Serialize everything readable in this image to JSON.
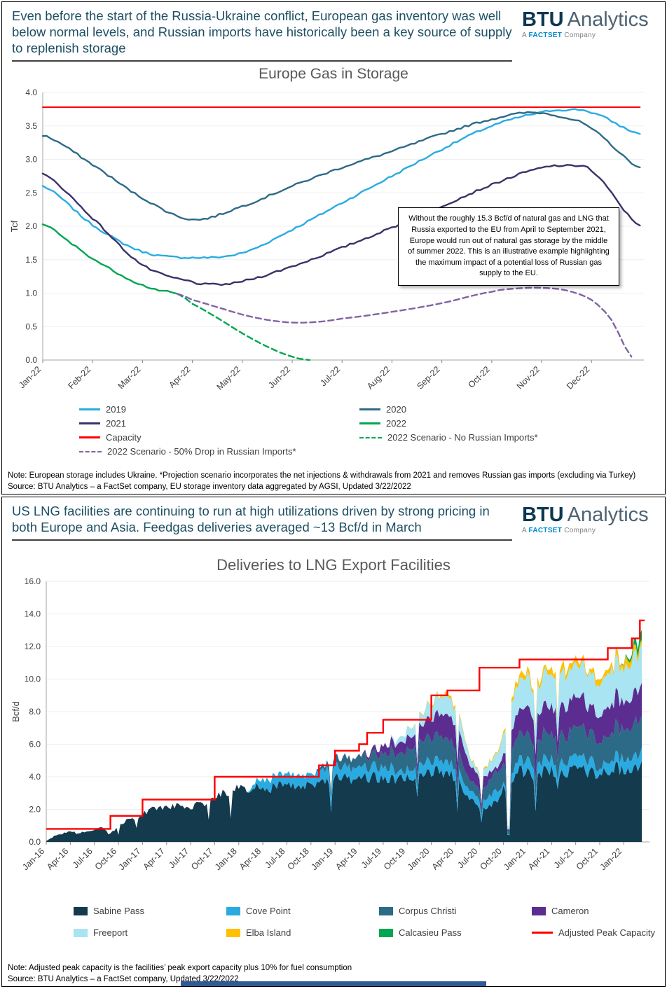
{
  "brand": {
    "btu": "BTU",
    "analytics": "Analytics",
    "a": "A",
    "factset": "FACTSET",
    "company": "Company"
  },
  "panels": [
    {
      "headline": "Even before the start of the Russia-Ukraine conflict, European gas inventory was well below normal levels, and Russian imports have historically been a key source of supply to replenish storage",
      "note": "Note:  European storage includes Ukraine. *Projection scenario incorporates the net injections & withdrawals from 2021 and removes Russian gas imports (excluding via Turkey)",
      "source": "Source: BTU Analytics – a FactSet company, EU storage inventory data aggregated by AGSI, Updated 3/22/2022"
    },
    {
      "headline": "US LNG facilities are continuing to run at high utilizations driven by strong pricing in both Europe and Asia. Feedgas deliveries averaged ~13 Bcf/d in March",
      "note": "Note:  Adjusted peak capacity is the facilities’ peak export capacity plus 10% for fuel consumption",
      "source": "Source: BTU Analytics – a FactSet company, Updated 3/22/2022"
    }
  ],
  "chart_data": [
    {
      "type": "line",
      "title": "Europe Gas in Storage",
      "ylabel": "Tcf",
      "ylim": [
        0,
        4.0
      ],
      "yticks": [
        0.0,
        0.5,
        1.0,
        1.5,
        2.0,
        2.5,
        3.0,
        3.5,
        4.0
      ],
      "xlim": [
        0,
        12.05
      ],
      "x_tick_labels": [
        "Jan-22",
        "Feb-22",
        "Mar-22",
        "Apr-22",
        "May-22",
        "Jun-22",
        "Jul-22",
        "Aug-22",
        "Sep-22",
        "Oct-22",
        "Nov-22",
        "Dec-22"
      ],
      "grid": true,
      "legend_position": "bottom",
      "annotation": "Without the roughly 15.3 Bcf/d of natural gas and LNG that Russia exported to the EU from April to September 2021, Europe would run out of natural gas storage by the middle of summer 2022. This is an illustrative example highlighting the maximum impact of a potential loss of Russian gas supply to the EU.",
      "series": [
        {
          "name": "2019",
          "color": "#29ABE2",
          "dash": false,
          "x": [
            0,
            1,
            2,
            3,
            4,
            5,
            6,
            7,
            8,
            9,
            10,
            10.5,
            11,
            11.97
          ],
          "y": [
            2.6,
            2.02,
            1.62,
            1.53,
            1.6,
            1.95,
            2.35,
            2.75,
            3.15,
            3.5,
            3.7,
            3.74,
            3.7,
            3.38
          ]
        },
        {
          "name": "2020",
          "color": "#2D6A87",
          "dash": false,
          "x": [
            0,
            1,
            2,
            3,
            4,
            5,
            6,
            7,
            8,
            9,
            9.8,
            10.5,
            11,
            11.97
          ],
          "y": [
            3.36,
            2.92,
            2.42,
            2.1,
            2.3,
            2.6,
            2.88,
            3.12,
            3.38,
            3.6,
            3.7,
            3.62,
            3.45,
            2.88
          ]
        },
        {
          "name": "2021",
          "color": "#3A3268",
          "dash": false,
          "x": [
            0,
            1,
            2,
            3,
            3.5,
            4,
            5,
            6,
            7,
            8,
            9,
            10,
            10.6,
            11,
            11.97
          ],
          "y": [
            2.78,
            2.12,
            1.42,
            1.17,
            1.13,
            1.18,
            1.4,
            1.68,
            1.98,
            2.3,
            2.62,
            2.87,
            2.9,
            2.82,
            2.01
          ]
        },
        {
          "name": "2022",
          "color": "#00A651",
          "dash": false,
          "x": [
            0,
            0.5,
            1,
            1.5,
            2,
            2.5,
            2.7
          ],
          "y": [
            2.04,
            1.78,
            1.52,
            1.3,
            1.12,
            1.02,
            0.99
          ]
        },
        {
          "name": "Capacity",
          "color": "#FF0000",
          "dash": false,
          "x": [
            0,
            11.97
          ],
          "y": [
            3.78,
            3.78
          ]
        },
        {
          "name": "2022 Scenario - No Russian Imports*",
          "color": "#00A651",
          "dash": true,
          "x": [
            2.7,
            3,
            3.5,
            4,
            4.5,
            5,
            5.35
          ],
          "y": [
            0.99,
            0.84,
            0.63,
            0.4,
            0.2,
            0.05,
            0.0
          ]
        },
        {
          "name": "2022 Scenario - 50% Drop in Russian Imports*",
          "color": "#8064A2",
          "dash": true,
          "x": [
            2.7,
            3,
            3.5,
            4,
            4.5,
            5,
            5.5,
            6,
            7,
            8,
            9,
            9.5,
            10,
            10.5,
            11,
            11.4,
            11.8
          ],
          "y": [
            0.99,
            0.9,
            0.79,
            0.68,
            0.6,
            0.56,
            0.57,
            0.62,
            0.72,
            0.85,
            1.02,
            1.07,
            1.08,
            1.04,
            0.9,
            0.6,
            0.05
          ]
        }
      ]
    },
    {
      "type": "area",
      "title": "Deliveries to LNG Export Facilities",
      "ylabel": "Bcf/d",
      "ylim": [
        0,
        16.0
      ],
      "yticks": [
        0.0,
        2.0,
        4.0,
        6.0,
        8.0,
        10.0,
        12.0,
        14.0,
        16.0
      ],
      "months_start": "Jan-16",
      "x_tick_labels": [
        "Jan-16",
        "Apr-16",
        "Jul-16",
        "Oct-16",
        "Jan-17",
        "Apr-17",
        "Jul-17",
        "Oct-17",
        "Jan-18",
        "Apr-18",
        "Jul-18",
        "Oct-18",
        "Jan-19",
        "Apr-19",
        "Jul-19",
        "Oct-19",
        "Jan-20",
        "Apr-20",
        "Jul-20",
        "Oct-20",
        "Jan-21",
        "Apr-21",
        "Jul-21",
        "Oct-21",
        "Jan-22"
      ],
      "grid": true,
      "series": [
        {
          "name": "Sabine Pass",
          "color": "#143A4E",
          "values": [
            0.05,
            0.35,
            0.5,
            0.65,
            0.5,
            0.65,
            0.75,
            0.85,
            0.55,
            0.95,
            1.35,
            1.5,
            1.75,
            1.95,
            2.1,
            2.05,
            2.15,
            2.25,
            2.15,
            2.35,
            2.45,
            2.75,
            2.95,
            3.15,
            3.3,
            3.1,
            3.35,
            3.45,
            3.3,
            3.4,
            3.45,
            3.4,
            3.5,
            3.3,
            3.55,
            3.7,
            3.85,
            3.95,
            3.9,
            3.95,
            4.0,
            3.9,
            3.8,
            3.85,
            3.95,
            4.05,
            4.15,
            4.25,
            4.3,
            4.35,
            4.2,
            3.9,
            3.2,
            2.5,
            2.0,
            2.2,
            2.4,
            3.2,
            4.0,
            4.3,
            4.4,
            3.8,
            4.4,
            4.4,
            4.3,
            4.3,
            4.4,
            4.4,
            4.2,
            4.3,
            4.4,
            4.5,
            4.5,
            4.55,
            4.7
          ]
        },
        {
          "name": "Cove Point",
          "color": "#29ABE2",
          "values": [
            0,
            0,
            0,
            0,
            0,
            0,
            0,
            0,
            0,
            0,
            0,
            0,
            0,
            0,
            0,
            0,
            0,
            0,
            0,
            0,
            0,
            0,
            0,
            0,
            0,
            0,
            0.3,
            0.55,
            0.65,
            0.6,
            0.65,
            0.7,
            0.65,
            0.6,
            0.7,
            0.7,
            0.7,
            0.7,
            0.7,
            0.7,
            0.7,
            0.7,
            0.7,
            0.7,
            0.3,
            0.5,
            0.7,
            0.7,
            0.7,
            0.7,
            0.7,
            0.7,
            0.6,
            0.5,
            0.5,
            0.6,
            0.7,
            0.2,
            0.6,
            0.7,
            0.7,
            0.7,
            0.7,
            0.7,
            0.7,
            0.7,
            0.7,
            0.7,
            0.7,
            0.3,
            0.7,
            0.7,
            0.7,
            0.7,
            0.75
          ]
        },
        {
          "name": "Corpus Christi",
          "color": "#2D6A87",
          "values": [
            0,
            0,
            0,
            0,
            0,
            0,
            0,
            0,
            0,
            0,
            0,
            0,
            0,
            0,
            0,
            0,
            0,
            0,
            0,
            0,
            0,
            0,
            0,
            0,
            0,
            0,
            0,
            0,
            0,
            0,
            0,
            0,
            0,
            0,
            0.15,
            0.35,
            0.5,
            0.55,
            0.6,
            0.65,
            0.7,
            0.75,
            0.8,
            1.0,
            1.1,
            1.2,
            1.3,
            1.4,
            1.4,
            1.5,
            1.4,
            1.2,
            0.9,
            0.6,
            0.7,
            0.9,
            1.1,
            1.3,
            1.5,
            1.6,
            1.6,
            1.3,
            1.6,
            1.6,
            1.7,
            1.6,
            1.7,
            1.7,
            1.6,
            1.7,
            1.7,
            1.8,
            1.9,
            1.95,
            2.05
          ]
        },
        {
          "name": "Cameron",
          "color": "#5C2D91",
          "values": [
            0,
            0,
            0,
            0,
            0,
            0,
            0,
            0,
            0,
            0,
            0,
            0,
            0,
            0,
            0,
            0,
            0,
            0,
            0,
            0,
            0,
            0,
            0,
            0,
            0,
            0,
            0,
            0,
            0,
            0,
            0,
            0,
            0,
            0,
            0,
            0,
            0,
            0,
            0,
            0,
            0.15,
            0.3,
            0.5,
            0.6,
            0.6,
            0.7,
            0.8,
            1.0,
            1.2,
            1.4,
            1.5,
            1.4,
            1.2,
            0.9,
            0.8,
            0.6,
            0.2,
            0.6,
            1.2,
            1.5,
            1.7,
            1.5,
            1.7,
            1.8,
            1.8,
            1.8,
            1.8,
            1.8,
            1.6,
            1.7,
            1.8,
            1.8,
            1.8,
            1.85,
            1.9
          ]
        },
        {
          "name": "Freeport",
          "color": "#A8E4F2",
          "values": [
            0,
            0,
            0,
            0,
            0,
            0,
            0,
            0,
            0,
            0,
            0,
            0,
            0,
            0,
            0,
            0,
            0,
            0,
            0,
            0,
            0,
            0,
            0,
            0,
            0,
            0,
            0,
            0,
            0,
            0,
            0,
            0,
            0,
            0,
            0,
            0,
            0,
            0,
            0,
            0,
            0,
            0,
            0,
            0.1,
            0.3,
            0.5,
            0.6,
            0.7,
            0.9,
            1.1,
            1.2,
            1.0,
            0.8,
            0.4,
            0.3,
            0.5,
            0.8,
            1.2,
            1.6,
            1.8,
            1.9,
            1.6,
            1.9,
            2.0,
            2.0,
            2.0,
            2.0,
            2.0,
            1.9,
            2.0,
            2.0,
            2.0,
            2.0,
            2.1,
            2.2
          ]
        },
        {
          "name": "Elba Island",
          "color": "#FFC000",
          "values": [
            0,
            0,
            0,
            0,
            0,
            0,
            0,
            0,
            0,
            0,
            0,
            0,
            0,
            0,
            0,
            0,
            0,
            0,
            0,
            0,
            0,
            0,
            0,
            0,
            0,
            0,
            0,
            0,
            0,
            0,
            0,
            0,
            0,
            0,
            0,
            0,
            0,
            0,
            0,
            0,
            0,
            0,
            0,
            0,
            0,
            0,
            0.03,
            0.05,
            0.08,
            0.1,
            0.15,
            0.1,
            0.1,
            0.05,
            0.05,
            0.1,
            0.1,
            0.15,
            0.2,
            0.25,
            0.3,
            0.25,
            0.3,
            0.3,
            0.3,
            0.3,
            0.3,
            0.3,
            0.3,
            0.3,
            0.3,
            0.3,
            0.3,
            0.32,
            0.35
          ]
        },
        {
          "name": "Calcasieu Pass",
          "color": "#00A651",
          "values": [
            0,
            0,
            0,
            0,
            0,
            0,
            0,
            0,
            0,
            0,
            0,
            0,
            0,
            0,
            0,
            0,
            0,
            0,
            0,
            0,
            0,
            0,
            0,
            0,
            0,
            0,
            0,
            0,
            0,
            0,
            0,
            0,
            0,
            0,
            0,
            0,
            0,
            0,
            0,
            0,
            0,
            0,
            0,
            0,
            0,
            0,
            0,
            0,
            0,
            0,
            0,
            0,
            0,
            0,
            0,
            0,
            0,
            0,
            0,
            0,
            0,
            0,
            0,
            0,
            0,
            0,
            0,
            0,
            0,
            0,
            0,
            0,
            0.05,
            0.25,
            0.6
          ]
        }
      ],
      "capacity": {
        "name": "Adjusted Peak Capacity",
        "color": "#FF0000",
        "values": [
          0.8,
          0.8,
          0.8,
          0.8,
          0.8,
          0.8,
          0.8,
          0.8,
          1.6,
          1.6,
          1.6,
          1.6,
          2.6,
          2.6,
          2.6,
          2.6,
          2.6,
          2.6,
          2.6,
          2.6,
          2.6,
          4.0,
          4.0,
          4.0,
          4.0,
          4.0,
          4.0,
          4.0,
          4.0,
          4.0,
          4.0,
          4.0,
          4.0,
          4.0,
          4.7,
          4.7,
          5.6,
          5.6,
          5.6,
          6.0,
          6.7,
          6.7,
          7.5,
          7.5,
          7.5,
          7.5,
          7.5,
          7.5,
          9.0,
          9.0,
          9.3,
          9.3,
          9.3,
          9.3,
          10.7,
          10.7,
          10.7,
          10.7,
          10.7,
          11.2,
          11.2,
          11.2,
          11.2,
          11.2,
          11.2,
          11.2,
          11.2,
          11.2,
          11.2,
          11.2,
          11.9,
          11.9,
          11.9,
          12.5,
          13.6
        ]
      }
    }
  ]
}
